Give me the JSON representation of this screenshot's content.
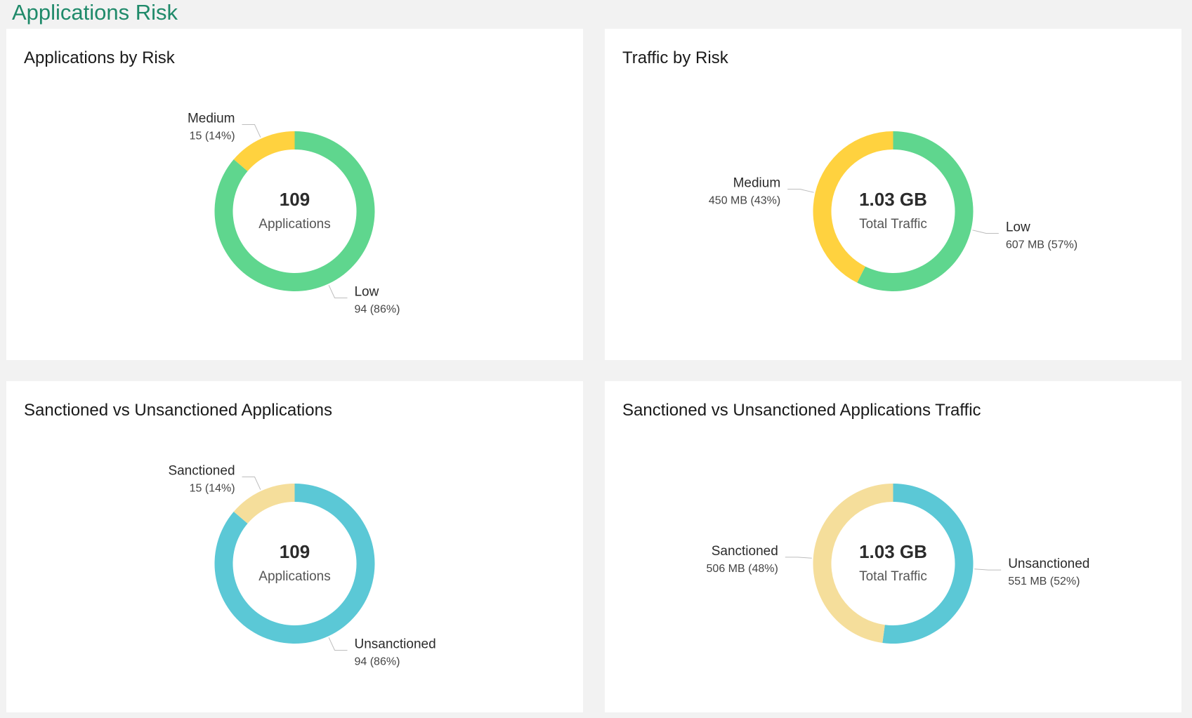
{
  "page": {
    "title": "Applications Risk"
  },
  "colors": {
    "low": "#5fd68e",
    "medium": "#ffd23f",
    "sanctioned": "#f5de9b",
    "unsanctioned": "#5bc8d6"
  },
  "chart_data": [
    {
      "type": "pie",
      "title": "Applications by Risk",
      "center": {
        "value": "109",
        "label": "Applications"
      },
      "series": [
        {
          "name": "Low",
          "value": 94,
          "display": "94 (86%)",
          "color": "#5fd68e"
        },
        {
          "name": "Medium",
          "value": 15,
          "display": "15 (14%)",
          "color": "#ffd23f"
        }
      ]
    },
    {
      "type": "pie",
      "title": "Traffic by Risk",
      "center": {
        "value": "1.03 GB",
        "label": "Total Traffic"
      },
      "series": [
        {
          "name": "Low",
          "value": 607,
          "display": "607 MB (57%)",
          "color": "#5fd68e"
        },
        {
          "name": "Medium",
          "value": 450,
          "display": "450 MB (43%)",
          "color": "#ffd23f"
        }
      ]
    },
    {
      "type": "pie",
      "title": "Sanctioned vs Unsanctioned Applications",
      "center": {
        "value": "109",
        "label": "Applications"
      },
      "series": [
        {
          "name": "Unsanctioned",
          "value": 94,
          "display": "94 (86%)",
          "color": "#5bc8d6"
        },
        {
          "name": "Sanctioned",
          "value": 15,
          "display": "15 (14%)",
          "color": "#f5de9b"
        }
      ]
    },
    {
      "type": "pie",
      "title": "Sanctioned vs Unsanctioned Applications Traffic",
      "center": {
        "value": "1.03 GB",
        "label": "Total Traffic"
      },
      "series": [
        {
          "name": "Unsanctioned",
          "value": 551,
          "display": "551 MB (52%)",
          "color": "#5bc8d6"
        },
        {
          "name": "Sanctioned",
          "value": 506,
          "display": "506 MB (48%)",
          "color": "#f5de9b"
        }
      ]
    }
  ]
}
